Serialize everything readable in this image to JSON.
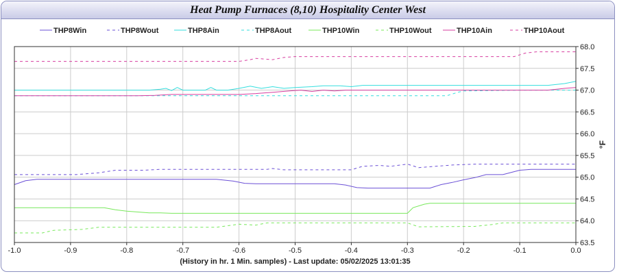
{
  "chart_data": {
    "type": "line",
    "title": "Heat Pump Furnaces (8,10) Hospitality Center West",
    "footer": "(History in hr. 1 Min. samples) - Last update: 05/02/2025 13:01:35",
    "ylabel": "°F",
    "xlim": [
      -1.0,
      0.0
    ],
    "ylim": [
      63.5,
      68.0
    ],
    "x_ticks": [
      "-1.0",
      "-0.9",
      "-0.8",
      "-0.7",
      "-0.6",
      "-0.5",
      "-0.4",
      "-0.3",
      "-0.2",
      "-0.1",
      "0.0"
    ],
    "y_ticks": [
      "63.5",
      "64.0",
      "64.5",
      "65.0",
      "65.5",
      "66.0",
      "66.5",
      "67.0",
      "67.5",
      "68.0"
    ],
    "grid": true,
    "legend_position": "top",
    "series": [
      {
        "name": "THP8Win",
        "color": "#6a4fd6",
        "dash": false,
        "points": [
          [
            -1.0,
            64.83
          ],
          [
            -0.98,
            64.92
          ],
          [
            -0.96,
            64.95
          ],
          [
            -0.64,
            64.95
          ],
          [
            -0.61,
            64.91
          ],
          [
            -0.59,
            64.86
          ],
          [
            -0.57,
            64.85
          ],
          [
            -0.43,
            64.85
          ],
          [
            -0.41,
            64.82
          ],
          [
            -0.39,
            64.76
          ],
          [
            -0.37,
            64.75
          ],
          [
            -0.26,
            64.75
          ],
          [
            -0.24,
            64.83
          ],
          [
            -0.22,
            64.88
          ],
          [
            -0.2,
            64.94
          ],
          [
            -0.18,
            64.99
          ],
          [
            -0.16,
            65.06
          ],
          [
            -0.13,
            65.06
          ],
          [
            -0.1,
            65.16
          ],
          [
            -0.08,
            65.18
          ],
          [
            0.0,
            65.18
          ]
        ]
      },
      {
        "name": "THP8Wout",
        "color": "#6a4fd6",
        "dash": true,
        "points": [
          [
            -1.0,
            65.06
          ],
          [
            -0.89,
            65.06
          ],
          [
            -0.85,
            65.1
          ],
          [
            -0.82,
            65.16
          ],
          [
            -0.77,
            65.16
          ],
          [
            -0.74,
            65.18
          ],
          [
            -0.55,
            65.18
          ],
          [
            -0.54,
            65.2
          ],
          [
            -0.52,
            65.17
          ],
          [
            -0.4,
            65.17
          ],
          [
            -0.38,
            65.25
          ],
          [
            -0.35,
            65.27
          ],
          [
            -0.33,
            65.25
          ],
          [
            -0.3,
            65.3
          ],
          [
            -0.28,
            65.22
          ],
          [
            -0.25,
            65.25
          ],
          [
            -0.22,
            65.28
          ],
          [
            -0.18,
            65.3
          ],
          [
            0.0,
            65.3
          ]
        ]
      },
      {
        "name": "THP8Ain",
        "color": "#33dede",
        "dash": false,
        "points": [
          [
            -1.0,
            67.0
          ],
          [
            -0.76,
            67.0
          ],
          [
            -0.74,
            67.02
          ],
          [
            -0.73,
            67.04
          ],
          [
            -0.72,
            66.99
          ],
          [
            -0.71,
            67.06
          ],
          [
            -0.7,
            67.0
          ],
          [
            -0.68,
            67.0
          ],
          [
            -0.66,
            67.0
          ],
          [
            -0.65,
            67.06
          ],
          [
            -0.64,
            67.0
          ],
          [
            -0.62,
            67.0
          ],
          [
            -0.6,
            67.04
          ],
          [
            -0.58,
            67.09
          ],
          [
            -0.56,
            67.04
          ],
          [
            -0.54,
            67.08
          ],
          [
            -0.52,
            67.04
          ],
          [
            -0.5,
            67.06
          ],
          [
            -0.47,
            67.08
          ],
          [
            -0.45,
            67.1
          ],
          [
            -0.42,
            67.1
          ],
          [
            -0.4,
            67.08
          ],
          [
            -0.38,
            67.11
          ],
          [
            -0.05,
            67.11
          ],
          [
            -0.02,
            67.15
          ],
          [
            0.0,
            67.2
          ]
        ]
      },
      {
        "name": "THP8Aout",
        "color": "#33dede",
        "dash": true,
        "points": [
          [
            -1.0,
            66.87
          ],
          [
            -0.23,
            66.87
          ],
          [
            -0.21,
            66.95
          ],
          [
            -0.2,
            66.98
          ],
          [
            -0.1,
            67.0
          ],
          [
            0.0,
            67.0
          ]
        ]
      },
      {
        "name": "THP10Win",
        "color": "#77e85a",
        "dash": false,
        "points": [
          [
            -1.0,
            64.3
          ],
          [
            -0.84,
            64.3
          ],
          [
            -0.82,
            64.25
          ],
          [
            -0.8,
            64.22
          ],
          [
            -0.78,
            64.2
          ],
          [
            -0.76,
            64.18
          ],
          [
            -0.74,
            64.18
          ],
          [
            -0.72,
            64.17
          ],
          [
            -0.3,
            64.17
          ],
          [
            -0.29,
            64.3
          ],
          [
            -0.27,
            64.38
          ],
          [
            -0.26,
            64.4
          ],
          [
            0.0,
            64.4
          ]
        ]
      },
      {
        "name": "THP10Wout",
        "color": "#77e85a",
        "dash": true,
        "points": [
          [
            -1.0,
            63.72
          ],
          [
            -0.95,
            63.72
          ],
          [
            -0.93,
            63.78
          ],
          [
            -0.88,
            63.8
          ],
          [
            -0.85,
            63.85
          ],
          [
            -0.64,
            63.85
          ],
          [
            -0.6,
            63.92
          ],
          [
            -0.57,
            63.9
          ],
          [
            -0.55,
            63.95
          ],
          [
            -0.3,
            63.95
          ],
          [
            -0.28,
            63.86
          ],
          [
            -0.18,
            63.87
          ],
          [
            -0.15,
            63.91
          ],
          [
            -0.13,
            63.95
          ],
          [
            0.0,
            63.95
          ]
        ]
      },
      {
        "name": "THP10Ain",
        "color": "#d63c9f",
        "dash": false,
        "points": [
          [
            -1.0,
            66.87
          ],
          [
            -0.78,
            66.87
          ],
          [
            -0.75,
            66.88
          ],
          [
            -0.72,
            66.9
          ],
          [
            -0.6,
            66.9
          ],
          [
            -0.57,
            66.92
          ],
          [
            -0.54,
            66.95
          ],
          [
            -0.51,
            66.98
          ],
          [
            -0.49,
            67.0
          ],
          [
            -0.47,
            66.97
          ],
          [
            -0.45,
            67.0
          ],
          [
            -0.43,
            66.98
          ],
          [
            -0.41,
            67.0
          ],
          [
            -0.05,
            67.0
          ],
          [
            -0.02,
            67.04
          ],
          [
            0.0,
            67.06
          ]
        ]
      },
      {
        "name": "THP10Aout",
        "color": "#d63c9f",
        "dash": true,
        "points": [
          [
            -1.0,
            67.66
          ],
          [
            -0.6,
            67.66
          ],
          [
            -0.58,
            67.7
          ],
          [
            -0.57,
            67.73
          ],
          [
            -0.54,
            67.7
          ],
          [
            -0.52,
            67.75
          ],
          [
            -0.5,
            67.77
          ],
          [
            -0.11,
            67.77
          ],
          [
            -0.09,
            67.85
          ],
          [
            -0.07,
            67.88
          ],
          [
            0.0,
            67.88
          ]
        ]
      }
    ]
  }
}
